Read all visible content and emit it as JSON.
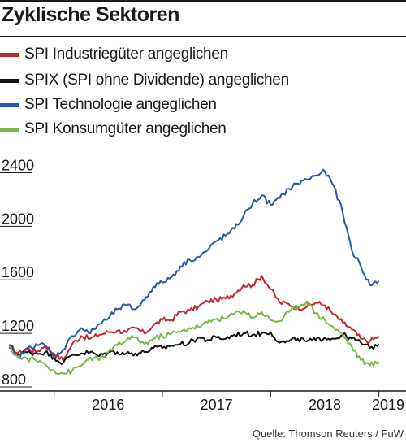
{
  "header": {
    "title": "Zyklische Sektoren"
  },
  "legend": [
    {
      "label": "SPI Industriegüter angeglichen",
      "color": "#c0282d"
    },
    {
      "label": "SPIX (SPI ohne Dividende) angeglichen",
      "color": "#111111"
    },
    {
      "label": "SPI Technologie angeglichen",
      "color": "#2a57a8"
    },
    {
      "label": "SPI Konsumgüter angeglichen",
      "color": "#7ab648"
    }
  ],
  "footer": {
    "source": "Quelle: Thomson Reuters / FuW"
  },
  "chart_data": {
    "type": "line",
    "x_range": [
      "2015-07",
      "2019-04"
    ],
    "ylim": [
      800,
      2500
    ],
    "y_ticks": [
      800,
      1200,
      1600,
      2000,
      2400
    ],
    "x_tick_labels": [
      "2016",
      "2017",
      "2018",
      "2019"
    ],
    "x_tick_positions": [
      "2016-01",
      "2017-01",
      "2018-01",
      "2019-01"
    ],
    "x_year_boundaries": [
      "2016-01",
      "2017-01",
      "2018-01",
      "2019-01"
    ],
    "grid": false,
    "legend_position": "top",
    "series": [
      {
        "name": "SPI Industriegüter angeglichen",
        "color": "#c0282d",
        "points": [
          [
            "2015-08",
            1110
          ],
          [
            "2015-09",
            1050
          ],
          [
            "2015-10",
            1090
          ],
          [
            "2015-11",
            1060
          ],
          [
            "2015-12",
            1110
          ],
          [
            "2016-01",
            1050
          ],
          [
            "2016-02",
            1000
          ],
          [
            "2016-03",
            1120
          ],
          [
            "2016-04",
            1180
          ],
          [
            "2016-05",
            1160
          ],
          [
            "2016-06",
            1190
          ],
          [
            "2016-07",
            1210
          ],
          [
            "2016-08",
            1220
          ],
          [
            "2016-09",
            1210
          ],
          [
            "2016-10",
            1240
          ],
          [
            "2016-11",
            1200
          ],
          [
            "2016-12",
            1260
          ],
          [
            "2017-01",
            1300
          ],
          [
            "2017-02",
            1300
          ],
          [
            "2017-03",
            1360
          ],
          [
            "2017-04",
            1370
          ],
          [
            "2017-05",
            1400
          ],
          [
            "2017-06",
            1440
          ],
          [
            "2017-07",
            1450
          ],
          [
            "2017-08",
            1460
          ],
          [
            "2017-09",
            1500
          ],
          [
            "2017-10",
            1560
          ],
          [
            "2017-11",
            1560
          ],
          [
            "2017-12",
            1630
          ],
          [
            "2018-01",
            1530
          ],
          [
            "2018-02",
            1430
          ],
          [
            "2018-03",
            1420
          ],
          [
            "2018-04",
            1390
          ],
          [
            "2018-05",
            1400
          ],
          [
            "2018-06",
            1430
          ],
          [
            "2018-07",
            1410
          ],
          [
            "2018-08",
            1340
          ],
          [
            "2018-09",
            1280
          ],
          [
            "2018-10",
            1230
          ],
          [
            "2018-11",
            1160
          ],
          [
            "2018-12",
            1140
          ],
          [
            "2019-01",
            1180
          ]
        ]
      },
      {
        "name": "SPIX (SPI ohne Dividende) angeglichen",
        "color": "#111111",
        "points": [
          [
            "2015-08",
            1110
          ],
          [
            "2015-09",
            1040
          ],
          [
            "2015-10",
            1060
          ],
          [
            "2015-11",
            1050
          ],
          [
            "2015-12",
            1060
          ],
          [
            "2016-01",
            1020
          ],
          [
            "2016-02",
            980
          ],
          [
            "2016-03",
            1040
          ],
          [
            "2016-04",
            1050
          ],
          [
            "2016-05",
            1060
          ],
          [
            "2016-06",
            1030
          ],
          [
            "2016-07",
            1060
          ],
          [
            "2016-08",
            1060
          ],
          [
            "2016-09",
            1050
          ],
          [
            "2016-10",
            1050
          ],
          [
            "2016-11",
            1060
          ],
          [
            "2016-12",
            1090
          ],
          [
            "2017-01",
            1090
          ],
          [
            "2017-02",
            1110
          ],
          [
            "2017-03",
            1120
          ],
          [
            "2017-04",
            1130
          ],
          [
            "2017-05",
            1170
          ],
          [
            "2017-06",
            1150
          ],
          [
            "2017-07",
            1170
          ],
          [
            "2017-08",
            1160
          ],
          [
            "2017-09",
            1190
          ],
          [
            "2017-10",
            1200
          ],
          [
            "2017-11",
            1190
          ],
          [
            "2017-12",
            1200
          ],
          [
            "2018-01",
            1210
          ],
          [
            "2018-02",
            1130
          ],
          [
            "2018-03",
            1140
          ],
          [
            "2018-04",
            1160
          ],
          [
            "2018-05",
            1140
          ],
          [
            "2018-06",
            1150
          ],
          [
            "2018-07",
            1170
          ],
          [
            "2018-08",
            1160
          ],
          [
            "2018-09",
            1190
          ],
          [
            "2018-10",
            1160
          ],
          [
            "2018-11",
            1130
          ],
          [
            "2018-12",
            1090
          ],
          [
            "2019-01",
            1120
          ]
        ]
      },
      {
        "name": "SPI Technologie angeglichen",
        "color": "#2a57a8",
        "points": [
          [
            "2015-08",
            1090
          ],
          [
            "2015-09",
            1020
          ],
          [
            "2015-10",
            1080
          ],
          [
            "2015-11",
            1120
          ],
          [
            "2015-12",
            1110
          ],
          [
            "2016-01",
            1020
          ],
          [
            "2016-02",
            1080
          ],
          [
            "2016-03",
            1180
          ],
          [
            "2016-04",
            1240
          ],
          [
            "2016-05",
            1200
          ],
          [
            "2016-06",
            1270
          ],
          [
            "2016-07",
            1310
          ],
          [
            "2016-08",
            1380
          ],
          [
            "2016-09",
            1410
          ],
          [
            "2016-10",
            1380
          ],
          [
            "2016-11",
            1450
          ],
          [
            "2016-12",
            1550
          ],
          [
            "2017-01",
            1580
          ],
          [
            "2017-02",
            1620
          ],
          [
            "2017-03",
            1700
          ],
          [
            "2017-04",
            1750
          ],
          [
            "2017-05",
            1770
          ],
          [
            "2017-06",
            1820
          ],
          [
            "2017-07",
            1890
          ],
          [
            "2017-08",
            1930
          ],
          [
            "2017-09",
            1980
          ],
          [
            "2017-10",
            2080
          ],
          [
            "2017-11",
            2170
          ],
          [
            "2017-12",
            2230
          ],
          [
            "2018-01",
            2160
          ],
          [
            "2018-02",
            2210
          ],
          [
            "2018-03",
            2280
          ],
          [
            "2018-04",
            2320
          ],
          [
            "2018-05",
            2350
          ],
          [
            "2018-06",
            2380
          ],
          [
            "2018-07",
            2410
          ],
          [
            "2018-08",
            2300
          ],
          [
            "2018-09",
            2100
          ],
          [
            "2018-10",
            1820
          ],
          [
            "2018-11",
            1700
          ],
          [
            "2018-12",
            1560
          ],
          [
            "2019-01",
            1590
          ]
        ]
      },
      {
        "name": "SPI Konsumgüter angeglichen",
        "color": "#7ab648",
        "points": [
          [
            "2015-08",
            1100
          ],
          [
            "2015-09",
            1020
          ],
          [
            "2015-10",
            1010
          ],
          [
            "2015-11",
            1000
          ],
          [
            "2015-12",
            970
          ],
          [
            "2016-01",
            920
          ],
          [
            "2016-02",
            900
          ],
          [
            "2016-03",
            920
          ],
          [
            "2016-04",
            960
          ],
          [
            "2016-05",
            1020
          ],
          [
            "2016-06",
            1000
          ],
          [
            "2016-07",
            1060
          ],
          [
            "2016-08",
            1110
          ],
          [
            "2016-09",
            1150
          ],
          [
            "2016-10",
            1170
          ],
          [
            "2016-11",
            1120
          ],
          [
            "2016-12",
            1160
          ],
          [
            "2017-01",
            1180
          ],
          [
            "2017-02",
            1200
          ],
          [
            "2017-03",
            1210
          ],
          [
            "2017-04",
            1240
          ],
          [
            "2017-05",
            1250
          ],
          [
            "2017-06",
            1280
          ],
          [
            "2017-07",
            1310
          ],
          [
            "2017-08",
            1310
          ],
          [
            "2017-09",
            1350
          ],
          [
            "2017-10",
            1370
          ],
          [
            "2017-11",
            1320
          ],
          [
            "2017-12",
            1360
          ],
          [
            "2018-01",
            1300
          ],
          [
            "2018-02",
            1290
          ],
          [
            "2018-03",
            1360
          ],
          [
            "2018-04",
            1400
          ],
          [
            "2018-05",
            1440
          ],
          [
            "2018-06",
            1350
          ],
          [
            "2018-07",
            1300
          ],
          [
            "2018-08",
            1240
          ],
          [
            "2018-09",
            1190
          ],
          [
            "2018-10",
            1100
          ],
          [
            "2018-11",
            1000
          ],
          [
            "2018-12",
            960
          ],
          [
            "2019-01",
            990
          ]
        ]
      }
    ]
  }
}
